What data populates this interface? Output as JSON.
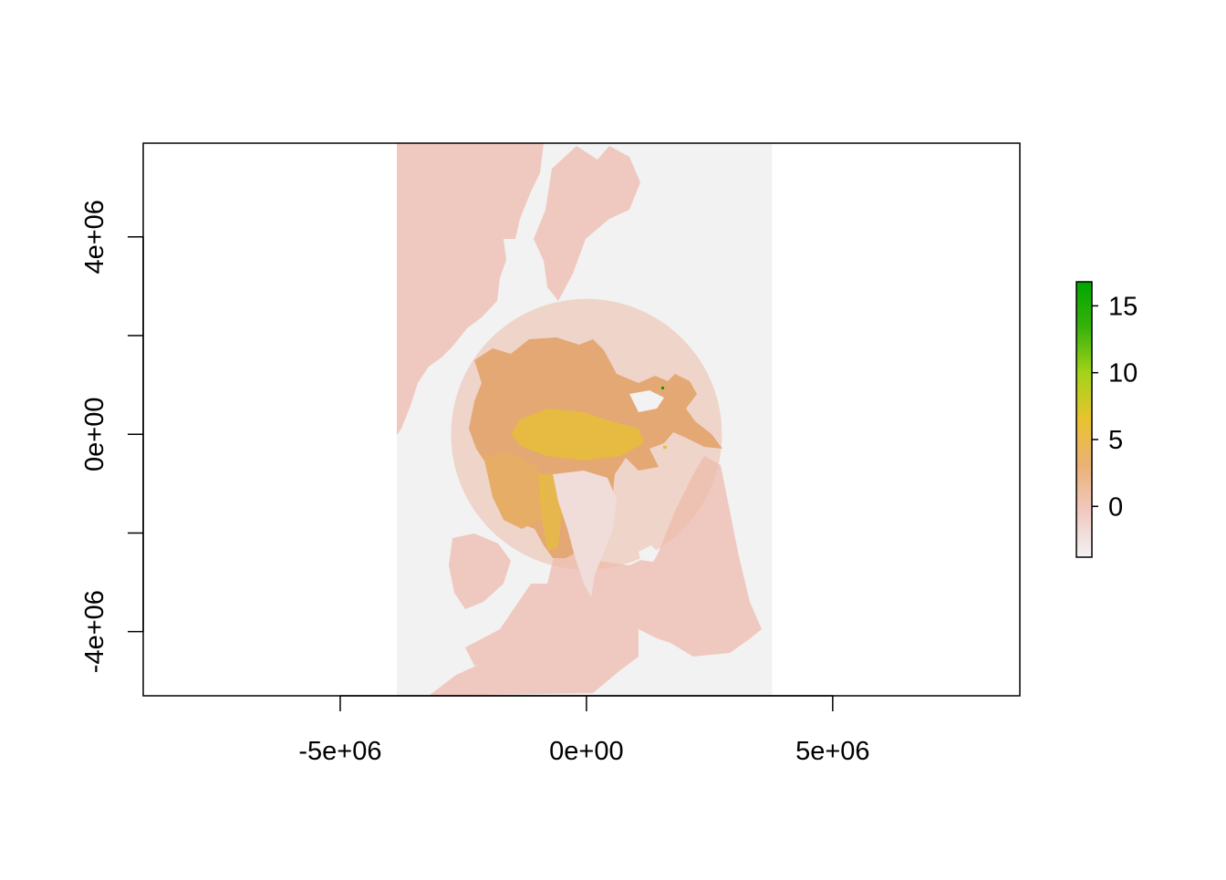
{
  "chart_data": {
    "type": "heatmap",
    "title": "",
    "xlabel": "",
    "ylabel": "",
    "xlim": [
      -9000000,
      8800000
    ],
    "ylim": [
      -5300000,
      5900000
    ],
    "x_ticks": [
      {
        "value": -5000000,
        "label": "-5e+06"
      },
      {
        "value": 0,
        "label": "0e+00"
      },
      {
        "value": 5000000,
        "label": "5e+06"
      }
    ],
    "y_ticks": [
      {
        "value": -4000000,
        "label": "-4e+06"
      },
      {
        "value": -2000000,
        "label": ""
      },
      {
        "value": 0,
        "label": "0e+00"
      },
      {
        "value": 2000000,
        "label": ""
      },
      {
        "value": 4000000,
        "label": "4e+06"
      }
    ],
    "raster_extent": {
      "xmin": -3850000,
      "xmax": 3770000,
      "ymin": -5300000,
      "ymax": 5900000
    },
    "cap_circle": {
      "center_x": 0,
      "center_y": 0,
      "radius": 2750000
    },
    "colorbar": {
      "range": [
        -3.8,
        16.8
      ],
      "ticks": [
        {
          "value": 0,
          "label": "0"
        },
        {
          "value": 5,
          "label": "5"
        },
        {
          "value": 10,
          "label": "10"
        },
        {
          "value": 15,
          "label": "15"
        }
      ],
      "colors": [
        "#f2f2f2",
        "#f0c9c0",
        "#ebb176",
        "#e8c32e",
        "#a4d319",
        "#38b20a",
        "#00a600"
      ]
    },
    "colors": {
      "land": "#f2f2f2",
      "ocean": "#efc9c0",
      "cap_circle": "#ecbba8",
      "ice": "#e3a874",
      "ice_high": "#e8c132",
      "greenland": "#f0dcd8"
    }
  }
}
